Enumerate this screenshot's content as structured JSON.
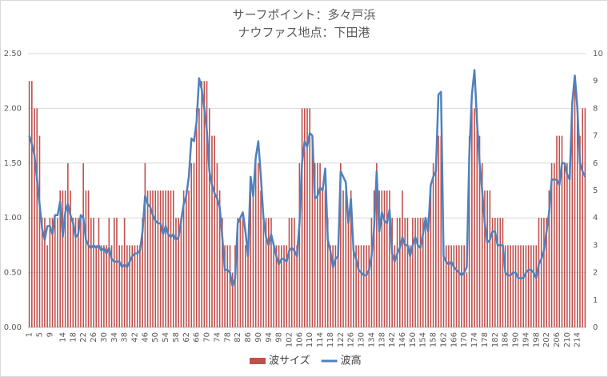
{
  "chart_data": {
    "type": "combo",
    "title": "サーフポイント：多々戸浜",
    "subtitle": "ナウファス地点：下田港",
    "categories": [
      1,
      null,
      null,
      null,
      5,
      null,
      null,
      null,
      9,
      null,
      null,
      null,
      null,
      14,
      null,
      null,
      null,
      18,
      null,
      null,
      null,
      22,
      null,
      null,
      null,
      26,
      null,
      null,
      null,
      30,
      null,
      null,
      null,
      34,
      null,
      null,
      null,
      38,
      null,
      null,
      null,
      42,
      null,
      null,
      null,
      46,
      null,
      null,
      null,
      50,
      null,
      null,
      null,
      54,
      null,
      null,
      null,
      58,
      null,
      null,
      null,
      62,
      null,
      null,
      null,
      66,
      null,
      null,
      null,
      70,
      null,
      null,
      null,
      74,
      null,
      null,
      null,
      78,
      null,
      null,
      null,
      82,
      null,
      null,
      null,
      86,
      null,
      null,
      null,
      90,
      null,
      null,
      null,
      94,
      null,
      null,
      null,
      98,
      null,
      null,
      null,
      102,
      null,
      null,
      null,
      106,
      null,
      null,
      null,
      110,
      null,
      null,
      null,
      114,
      null,
      null,
      null,
      118,
      null,
      null,
      null,
      122,
      null,
      null,
      null,
      126,
      null,
      null,
      null,
      130,
      null,
      null,
      null,
      134,
      null,
      null,
      null,
      138,
      null,
      null,
      null,
      142,
      null,
      null,
      null,
      146,
      null,
      null,
      null,
      150,
      null,
      null,
      null,
      154,
      null,
      null,
      null,
      158,
      null,
      null,
      null,
      162,
      null,
      null,
      null,
      166,
      null,
      null,
      null,
      170,
      null,
      null,
      null,
      174,
      null,
      null,
      null,
      178,
      null,
      null,
      null,
      182,
      null,
      null,
      null,
      186,
      null,
      null,
      null,
      190,
      null,
      null,
      null,
      194,
      null,
      null,
      null,
      198,
      null,
      null,
      null,
      202,
      null,
      null,
      null,
      206,
      null,
      null,
      null,
      210,
      null,
      null,
      null,
      214,
      null,
      null,
      null
    ],
    "series": [
      {
        "name": "波サイズ",
        "type": "bar",
        "color": "#c0504d",
        "values": [
          2.25,
          2.25,
          2.0,
          2.0,
          1.75,
          1.0,
          1.0,
          0.75,
          1.0,
          1.0,
          1.0,
          1.0,
          1.25,
          1.25,
          1.25,
          1.5,
          1.25,
          1.0,
          1.0,
          1.0,
          1.0,
          1.5,
          1.25,
          1.25,
          1.0,
          1.0,
          0.75,
          1.0,
          0.75,
          0.75,
          0.75,
          1.0,
          0.75,
          1.0,
          1.0,
          0.75,
          0.75,
          1.0,
          0.75,
          0.75,
          0.75,
          0.75,
          0.75,
          0.75,
          1.0,
          1.5,
          1.25,
          1.25,
          1.25,
          1.25,
          1.25,
          1.25,
          1.25,
          1.25,
          1.25,
          1.25,
          1.25,
          1.0,
          1.0,
          1.0,
          1.25,
          1.25,
          1.25,
          1.5,
          1.5,
          2.0,
          2.0,
          2.25,
          2.25,
          2.25,
          2.0,
          1.75,
          1.75,
          1.5,
          1.25,
          1.0,
          0.75,
          0.75,
          0.75,
          0.5,
          0.75,
          1.0,
          1.0,
          1.0,
          0.75,
          0.75,
          1.25,
          1.25,
          1.5,
          1.5,
          1.25,
          1.0,
          1.0,
          1.0,
          1.0,
          0.75,
          0.75,
          0.75,
          0.75,
          0.75,
          0.75,
          1.0,
          1.0,
          1.0,
          0.75,
          1.5,
          2.0,
          2.0,
          2.0,
          2.0,
          1.75,
          1.5,
          1.5,
          1.5,
          1.25,
          1.25,
          1.0,
          0.75,
          0.75,
          0.75,
          0.75,
          1.5,
          1.25,
          1.25,
          1.0,
          1.25,
          0.75,
          0.75,
          0.75,
          0.75,
          0.75,
          0.75,
          0.75,
          1.0,
          1.25,
          1.5,
          1.25,
          1.25,
          1.25,
          1.25,
          1.25,
          1.0,
          0.75,
          1.0,
          1.0,
          1.25,
          1.0,
          1.0,
          0.75,
          1.0,
          1.0,
          1.0,
          1.0,
          1.0,
          1.0,
          1.0,
          1.25,
          1.5,
          1.5,
          1.75,
          1.75,
          0.75,
          0.75,
          0.75,
          0.75,
          0.75,
          0.75,
          0.75,
          0.75,
          0.75,
          0.5,
          1.75,
          2.0,
          2.0,
          2.0,
          1.75,
          1.5,
          1.25,
          1.25,
          1.25,
          1.0,
          1.0,
          1.0,
          1.0,
          1.0,
          0.75,
          0.75,
          0.75,
          0.75,
          0.75,
          0.75,
          0.75,
          0.75,
          0.75,
          0.75,
          0.75,
          0.75,
          0.75,
          1.0,
          1.0,
          1.0,
          1.0,
          1.25,
          1.5,
          1.5,
          1.75,
          1.75,
          1.75,
          1.5,
          1.5,
          1.5,
          2.0,
          2.25,
          2.0,
          1.75,
          2.0,
          2.0
        ]
      },
      {
        "name": "波高",
        "type": "line",
        "axis": "y2",
        "color": "#4f81bd",
        "values": [
          7.0,
          6.7,
          6.3,
          5.4,
          4.5,
          3.6,
          3.2,
          3.7,
          3.7,
          3.4,
          4.1,
          4.1,
          4.6,
          3.3,
          4.2,
          4.5,
          4.1,
          3.8,
          3.3,
          3.4,
          4.1,
          4.0,
          3.2,
          3.0,
          2.9,
          3.0,
          2.9,
          3.0,
          2.8,
          2.9,
          2.7,
          2.9,
          2.5,
          2.4,
          2.4,
          2.4,
          2.2,
          2.3,
          2.2,
          2.4,
          2.6,
          2.7,
          2.7,
          2.8,
          3.5,
          4.8,
          4.5,
          4.4,
          4.1,
          3.9,
          3.8,
          3.8,
          3.4,
          3.7,
          3.4,
          3.3,
          3.4,
          3.2,
          3.3,
          3.9,
          4.5,
          4.8,
          5.5,
          6.9,
          6.8,
          7.5,
          9.1,
          8.7,
          8.0,
          7.2,
          5.7,
          5.2,
          4.9,
          4.7,
          4.4,
          3.3,
          2.1,
          2.1,
          2.0,
          1.5,
          1.8,
          3.8,
          4.0,
          4.2,
          3.5,
          2.6,
          5.5,
          4.8,
          6.2,
          6.8,
          5.5,
          4.0,
          3.3,
          3.0,
          3.4,
          3.0,
          2.6,
          2.3,
          2.5,
          2.5,
          2.4,
          2.8,
          2.9,
          2.8,
          2.6,
          3.8,
          6.0,
          6.8,
          6.6,
          7.1,
          7.0,
          4.7,
          4.8,
          5.1,
          5.0,
          5.8,
          3.2,
          2.8,
          2.2,
          2.5,
          2.6,
          5.7,
          5.5,
          5.3,
          3.8,
          4.7,
          2.8,
          2.5,
          2.1,
          2.0,
          1.9,
          1.9,
          2.1,
          2.6,
          3.6,
          5.7,
          3.5,
          4.2,
          3.9,
          3.8,
          4.3,
          2.7,
          2.4,
          2.7,
          2.9,
          3.3,
          3.0,
          3.0,
          2.6,
          3.0,
          3.3,
          3.0,
          2.9,
          3.4,
          4.0,
          3.5,
          5.2,
          5.5,
          5.7,
          8.5,
          8.6,
          2.6,
          2.4,
          2.3,
          2.4,
          2.2,
          2.1,
          2.0,
          1.9,
          2.0,
          2.2,
          6.3,
          8.5,
          9.4,
          7.5,
          6.0,
          5.0,
          3.8,
          3.1,
          3.2,
          3.5,
          3.5,
          3.0,
          3.0,
          3.0,
          2.0,
          1.9,
          1.9,
          2.0,
          2.0,
          1.8,
          1.8,
          1.8,
          2.0,
          2.1,
          2.1,
          2.0,
          1.8,
          2.3,
          2.5,
          2.8,
          3.5,
          4.2,
          5.4,
          5.4,
          5.4,
          5.2,
          6.0,
          6.0,
          5.6,
          5.4,
          8.2,
          9.2,
          8.0,
          6.0,
          5.7,
          5.5
        ]
      }
    ],
    "ylim": [
      0,
      2.5
    ],
    "yticks": [
      {
        "value": 0,
        "label": "0.00"
      },
      {
        "value": 0.5,
        "label": "0.50"
      },
      {
        "value": 1,
        "label": "1.00"
      },
      {
        "value": 1.5,
        "label": "1.50"
      },
      {
        "value": 2,
        "label": "2.00"
      },
      {
        "value": 2.5,
        "label": "2.50"
      }
    ],
    "y2lim": [
      0,
      10
    ],
    "y2ticks": [
      0,
      1,
      2,
      3,
      4,
      5,
      6,
      7,
      8,
      9,
      10
    ],
    "grid": true,
    "legend": "bottom"
  }
}
